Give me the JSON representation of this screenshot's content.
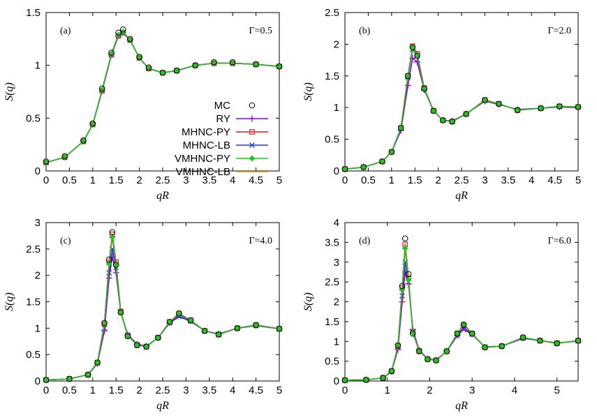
{
  "colors": {
    "MC": "#000000",
    "RY": "#9400d3",
    "MHNC-PY": "#e41a1c",
    "MHNC-LB": "#1f3fd8",
    "VMHNC-PY": "#22c41e",
    "VMHNC-LB": "#f0a020"
  },
  "legend": {
    "entries": [
      {
        "label": "MC",
        "series": "MC",
        "marker": "open-circle"
      },
      {
        "label": "RY",
        "series": "RY",
        "marker": "plus"
      },
      {
        "label": "MHNC-PY",
        "series": "MHNC-PY",
        "marker": "open-square"
      },
      {
        "label": "MHNC-LB",
        "series": "MHNC-LB",
        "marker": "cross"
      },
      {
        "label": "VMHNC-PY",
        "series": "VMHNC-PY",
        "marker": "filled-diamond"
      },
      {
        "label": "VMHNC-LB",
        "series": "VMHNC-LB",
        "marker": "line-only"
      }
    ],
    "placement": "inside panel (a), right-center"
  },
  "chart_data": [
    {
      "type": "line",
      "panel": "(a)",
      "annotation": "Γ=0.5",
      "xlabel": "qR",
      "ylabel": "S(q)",
      "xlim": [
        0,
        5
      ],
      "ylim": [
        0,
        1.5
      ],
      "xticks": [
        "0",
        "0.5",
        "1",
        "1.5",
        "2",
        "2.5",
        "3",
        "3.5",
        "4",
        "4.5",
        "5"
      ],
      "yticks": [
        "0",
        "0.5",
        "1",
        "1.5"
      ],
      "grid": false,
      "x": [
        0,
        0.4,
        0.8,
        1.0,
        1.2,
        1.4,
        1.55,
        1.65,
        1.8,
        2.0,
        2.2,
        2.5,
        2.8,
        3.2,
        3.6,
        4.0,
        4.5,
        5.0
      ],
      "series": [
        {
          "name": "MC",
          "values": [
            0.09,
            0.14,
            0.29,
            0.45,
            0.78,
            1.12,
            1.31,
            1.34,
            1.25,
            1.08,
            0.98,
            0.93,
            0.95,
            1.0,
            1.03,
            1.03,
            1.01,
            0.99
          ]
        },
        {
          "name": "RY",
          "values": [
            0.08,
            0.13,
            0.28,
            0.44,
            0.76,
            1.1,
            1.28,
            1.31,
            1.24,
            1.07,
            0.97,
            0.93,
            0.95,
            1.0,
            1.02,
            1.02,
            1.01,
            0.99
          ]
        },
        {
          "name": "MHNC-PY",
          "values": [
            0.08,
            0.13,
            0.28,
            0.44,
            0.76,
            1.1,
            1.28,
            1.31,
            1.24,
            1.07,
            0.97,
            0.93,
            0.95,
            1.0,
            1.02,
            1.02,
            1.01,
            0.99
          ]
        },
        {
          "name": "MHNC-LB",
          "values": [
            0.08,
            0.13,
            0.28,
            0.44,
            0.76,
            1.1,
            1.28,
            1.31,
            1.24,
            1.07,
            0.97,
            0.93,
            0.95,
            1.0,
            1.02,
            1.02,
            1.01,
            0.99
          ]
        },
        {
          "name": "VMHNC-PY",
          "values": [
            0.08,
            0.13,
            0.28,
            0.44,
            0.77,
            1.11,
            1.29,
            1.32,
            1.24,
            1.07,
            0.97,
            0.93,
            0.95,
            1.0,
            1.02,
            1.02,
            1.01,
            0.99
          ]
        },
        {
          "name": "VMHNC-LB",
          "values": [
            0.08,
            0.13,
            0.28,
            0.44,
            0.76,
            1.1,
            1.28,
            1.31,
            1.24,
            1.07,
            0.97,
            0.93,
            0.95,
            1.0,
            1.02,
            1.02,
            1.01,
            0.99
          ]
        }
      ]
    },
    {
      "type": "line",
      "panel": "(b)",
      "annotation": "Γ=2.0",
      "xlabel": "qR",
      "ylabel": "S(q)",
      "xlim": [
        0,
        5
      ],
      "ylim": [
        0,
        2.5
      ],
      "xticks": [
        "0",
        "0.5",
        "1",
        "1.5",
        "2",
        "2.5",
        "3",
        "3.5",
        "4",
        "4.5",
        "5"
      ],
      "yticks": [
        "0",
        "0.5",
        "1",
        "1.5",
        "2",
        "2.5"
      ],
      "grid": false,
      "x": [
        0,
        0.4,
        0.8,
        1.0,
        1.2,
        1.35,
        1.45,
        1.55,
        1.7,
        1.9,
        2.1,
        2.3,
        2.6,
        3.0,
        3.3,
        3.7,
        4.2,
        4.6,
        5.0
      ],
      "series": [
        {
          "name": "MC",
          "values": [
            0.03,
            0.06,
            0.15,
            0.3,
            0.68,
            1.5,
            1.95,
            1.82,
            1.3,
            0.95,
            0.8,
            0.78,
            0.9,
            1.12,
            1.06,
            0.96,
            0.99,
            1.02,
            1.01
          ]
        },
        {
          "name": "RY",
          "values": [
            0.03,
            0.06,
            0.15,
            0.3,
            0.64,
            1.35,
            1.78,
            1.72,
            1.28,
            0.95,
            0.8,
            0.79,
            0.9,
            1.1,
            1.05,
            0.97,
            0.99,
            1.01,
            1.0
          ]
        },
        {
          "name": "MHNC-PY",
          "values": [
            0.03,
            0.06,
            0.15,
            0.3,
            0.68,
            1.5,
            1.97,
            1.85,
            1.31,
            0.95,
            0.8,
            0.78,
            0.9,
            1.12,
            1.06,
            0.96,
            0.99,
            1.02,
            1.01
          ]
        },
        {
          "name": "MHNC-LB",
          "values": [
            0.03,
            0.06,
            0.15,
            0.3,
            0.67,
            1.48,
            1.92,
            1.82,
            1.3,
            0.95,
            0.8,
            0.78,
            0.9,
            1.11,
            1.06,
            0.96,
            0.99,
            1.02,
            1.01
          ]
        },
        {
          "name": "VMHNC-PY",
          "values": [
            0.03,
            0.06,
            0.15,
            0.3,
            0.68,
            1.49,
            1.95,
            1.83,
            1.3,
            0.95,
            0.8,
            0.78,
            0.9,
            1.11,
            1.06,
            0.96,
            0.99,
            1.02,
            1.01
          ]
        },
        {
          "name": "VMHNC-LB",
          "values": [
            0.03,
            0.06,
            0.15,
            0.3,
            0.68,
            1.49,
            1.95,
            1.83,
            1.3,
            0.95,
            0.8,
            0.78,
            0.9,
            1.11,
            1.06,
            0.96,
            0.99,
            1.02,
            1.01
          ]
        }
      ]
    },
    {
      "type": "line",
      "panel": "(c)",
      "annotation": "Γ=4.0",
      "xlabel": "qR",
      "ylabel": "S(q)",
      "xlim": [
        0,
        5
      ],
      "ylim": [
        0,
        3
      ],
      "xticks": [
        "0",
        "0.5",
        "1",
        "1.5",
        "2",
        "2.5",
        "3",
        "3.5",
        "4",
        "4.5",
        "5"
      ],
      "yticks": [
        "0",
        "0.5",
        "1",
        "1.5",
        "2",
        "2.5",
        "3"
      ],
      "grid": false,
      "x": [
        0,
        0.5,
        0.9,
        1.1,
        1.25,
        1.35,
        1.42,
        1.5,
        1.6,
        1.75,
        1.95,
        2.15,
        2.4,
        2.65,
        2.85,
        3.1,
        3.4,
        3.7,
        4.1,
        4.5,
        5.0
      ],
      "series": [
        {
          "name": "MC",
          "values": [
            0.02,
            0.04,
            0.12,
            0.35,
            1.1,
            2.3,
            2.82,
            2.2,
            1.3,
            0.85,
            0.68,
            0.65,
            0.82,
            1.12,
            1.28,
            1.15,
            0.95,
            0.88,
            1.0,
            1.06,
            0.99
          ]
        },
        {
          "name": "RY",
          "values": [
            0.02,
            0.04,
            0.12,
            0.33,
            0.95,
            1.95,
            2.35,
            2.05,
            1.3,
            0.88,
            0.7,
            0.66,
            0.82,
            1.1,
            1.25,
            1.14,
            0.95,
            0.89,
            1.0,
            1.05,
            0.99
          ]
        },
        {
          "name": "MHNC-PY",
          "values": [
            0.02,
            0.04,
            0.12,
            0.35,
            1.08,
            2.25,
            2.78,
            2.25,
            1.32,
            0.86,
            0.68,
            0.65,
            0.82,
            1.12,
            1.28,
            1.15,
            0.95,
            0.88,
            1.0,
            1.06,
            0.99
          ]
        },
        {
          "name": "MHNC-LB",
          "values": [
            0.02,
            0.04,
            0.12,
            0.34,
            1.0,
            2.05,
            2.5,
            2.15,
            1.3,
            0.87,
            0.69,
            0.66,
            0.82,
            1.1,
            1.22,
            1.13,
            0.95,
            0.89,
            1.0,
            1.05,
            0.99
          ]
        },
        {
          "name": "VMHNC-PY",
          "values": [
            0.02,
            0.04,
            0.12,
            0.35,
            1.08,
            2.22,
            2.72,
            2.2,
            1.3,
            0.86,
            0.68,
            0.65,
            0.82,
            1.12,
            1.27,
            1.15,
            0.95,
            0.88,
            1.0,
            1.06,
            0.99
          ]
        },
        {
          "name": "VMHNC-LB",
          "values": [
            0.02,
            0.04,
            0.12,
            0.35,
            1.08,
            2.22,
            2.72,
            2.2,
            1.3,
            0.86,
            0.68,
            0.65,
            0.82,
            1.12,
            1.27,
            1.15,
            0.95,
            0.88,
            1.0,
            1.06,
            0.99
          ]
        }
      ]
    },
    {
      "type": "line",
      "panel": "(d)",
      "annotation": "Γ=6.0",
      "xlabel": "qR",
      "ylabel": "S(q)",
      "xlim": [
        0,
        5.5
      ],
      "ylim": [
        0,
        4
      ],
      "xticks": [
        "0",
        "1",
        "2",
        "3",
        "4",
        "5"
      ],
      "yticks": [
        "0",
        "0.5",
        "1",
        "1.5",
        "2",
        "2.5",
        "3",
        "3.5",
        "4"
      ],
      "grid": false,
      "x": [
        0,
        0.5,
        0.9,
        1.1,
        1.25,
        1.35,
        1.42,
        1.5,
        1.6,
        1.75,
        1.95,
        2.15,
        2.4,
        2.65,
        2.8,
        3.0,
        3.3,
        3.7,
        4.2,
        4.6,
        5.0,
        5.5
      ],
      "series": [
        {
          "name": "MC",
          "values": [
            0.02,
            0.03,
            0.08,
            0.25,
            0.9,
            2.4,
            3.6,
            2.7,
            1.2,
            0.75,
            0.55,
            0.52,
            0.75,
            1.2,
            1.42,
            1.2,
            0.85,
            0.88,
            1.1,
            1.02,
            0.95,
            1.02
          ]
        },
        {
          "name": "RY",
          "values": [
            0.02,
            0.03,
            0.08,
            0.24,
            0.8,
            2.0,
            2.75,
            2.45,
            1.3,
            0.78,
            0.56,
            0.53,
            0.75,
            1.15,
            1.35,
            1.18,
            0.86,
            0.88,
            1.08,
            1.02,
            0.96,
            1.01
          ]
        },
        {
          "name": "MHNC-PY",
          "values": [
            0.02,
            0.03,
            0.08,
            0.25,
            0.88,
            2.35,
            3.45,
            2.6,
            1.25,
            0.76,
            0.55,
            0.52,
            0.75,
            1.2,
            1.42,
            1.2,
            0.85,
            0.88,
            1.1,
            1.02,
            0.95,
            1.02
          ]
        },
        {
          "name": "MHNC-LB",
          "values": [
            0.02,
            0.03,
            0.08,
            0.24,
            0.84,
            2.15,
            3.0,
            2.5,
            1.25,
            0.77,
            0.56,
            0.53,
            0.75,
            1.15,
            1.3,
            1.18,
            0.86,
            0.88,
            1.08,
            1.02,
            0.96,
            1.01
          ]
        },
        {
          "name": "VMHNC-PY",
          "values": [
            0.02,
            0.03,
            0.08,
            0.25,
            0.88,
            2.3,
            3.35,
            2.55,
            1.22,
            0.76,
            0.55,
            0.52,
            0.75,
            1.2,
            1.44,
            1.2,
            0.85,
            0.88,
            1.1,
            1.02,
            0.95,
            1.02
          ]
        },
        {
          "name": "VMHNC-LB",
          "values": [
            0.02,
            0.03,
            0.08,
            0.25,
            0.88,
            2.3,
            3.35,
            2.55,
            1.22,
            0.76,
            0.55,
            0.52,
            0.75,
            1.2,
            1.44,
            1.2,
            0.85,
            0.88,
            1.1,
            1.02,
            0.95,
            1.02
          ]
        }
      ]
    }
  ]
}
